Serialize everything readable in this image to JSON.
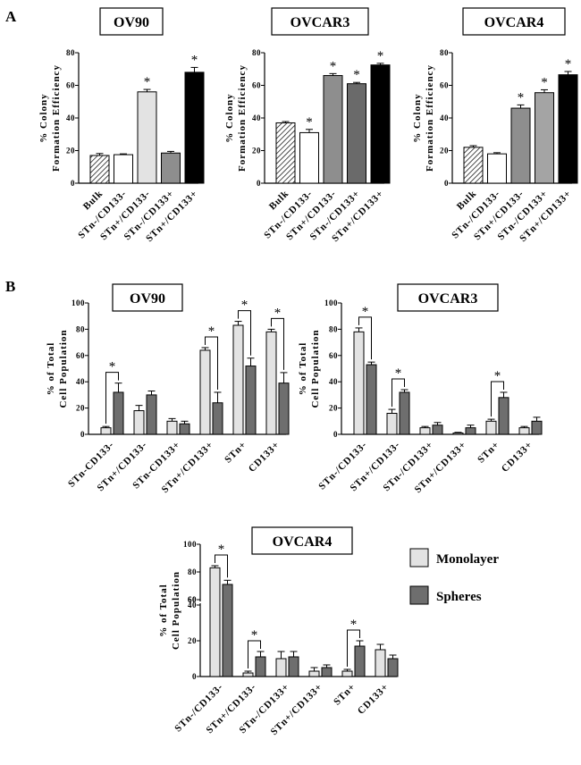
{
  "panels": {
    "a": "A",
    "b": "B"
  },
  "colors": {
    "bulk": "hatch",
    "white": "#ffffff",
    "lightgray": "#e3e3e3",
    "midgray": "#8e8e8e",
    "darkgray": "#6a6a6a",
    "lightmid": "#a4a4a4",
    "black": "#000000",
    "monolayer": "#e3e3e3",
    "spheres": "#6e6e6e"
  },
  "legend": {
    "monolayer": "Monolayer",
    "spheres": "Spheres"
  },
  "chart_data": [
    {
      "id": "a1",
      "type": "bar",
      "title": "OV90",
      "ylabel": [
        "% Colony",
        "Formation Efficiency"
      ],
      "ylim": [
        0,
        80
      ],
      "yticks": [
        0,
        20,
        40,
        60,
        80
      ],
      "categories": [
        "Bulk",
        "STn-/CD133-",
        "STn+/CD133-",
        "STn-/CD133+",
        "STn+/CD133+"
      ],
      "values": [
        17,
        17.5,
        56,
        18.5,
        68
      ],
      "errors": [
        1.2,
        0.5,
        1.5,
        1,
        3
      ],
      "colors": [
        "hatch",
        "#ffffff",
        "#e3e3e3",
        "#8e8e8e",
        "#000000"
      ],
      "significant": [
        false,
        false,
        true,
        false,
        true
      ],
      "star": "*"
    },
    {
      "id": "a2",
      "type": "bar",
      "title": "OVCAR3",
      "ylabel": [
        "% Colony",
        "Formation Efficiency"
      ],
      "ylim": [
        0,
        80
      ],
      "yticks": [
        0,
        20,
        40,
        60,
        80
      ],
      "categories": [
        "Bulk",
        "STn-/CD133-",
        "STn+/CD133-",
        "STn-/CD133+",
        "STn+/CD133+"
      ],
      "values": [
        37,
        31,
        66,
        61,
        72.5
      ],
      "errors": [
        0.8,
        2,
        1.2,
        0.8,
        1
      ],
      "colors": [
        "hatch",
        "#ffffff",
        "#8e8e8e",
        "#6a6a6a",
        "#000000"
      ],
      "significant": [
        false,
        true,
        true,
        true,
        true
      ],
      "star": "*"
    },
    {
      "id": "a3",
      "type": "bar",
      "title": "OVCAR4",
      "ylabel": [
        "% Colony",
        "Formation Efficiency"
      ],
      "ylim": [
        0,
        80
      ],
      "yticks": [
        0,
        20,
        40,
        60,
        80
      ],
      "categories": [
        "Bulk",
        "STn-/CD133-",
        "STn+/CD133-",
        "STn-/CD133+",
        "STn+/CD133+"
      ],
      "values": [
        22,
        18,
        46,
        55.5,
        66.5
      ],
      "errors": [
        1,
        0.7,
        2,
        1.8,
        2
      ],
      "colors": [
        "hatch",
        "#ffffff",
        "#8e8e8e",
        "#a4a4a4",
        "#000000"
      ],
      "significant": [
        false,
        false,
        true,
        true,
        true
      ],
      "star": "*"
    },
    {
      "id": "b1",
      "type": "bar",
      "title": "OV90",
      "ylabel": [
        "% of Total",
        "Cell Population"
      ],
      "ylim": [
        0,
        100
      ],
      "yticks": [
        0,
        20,
        40,
        60,
        80,
        100
      ],
      "categories": [
        "STn-CD133-",
        "STn+/CD133-",
        "STn-CD133+",
        "STn+/CD133+",
        "STn+",
        "CD133+"
      ],
      "series": [
        {
          "name": "Monolayer",
          "values": [
            5,
            18,
            10,
            64,
            83,
            78
          ],
          "errors": [
            1,
            4,
            2,
            2,
            3,
            2
          ]
        },
        {
          "name": "Spheres",
          "values": [
            32,
            30,
            8,
            24,
            52,
            39
          ],
          "errors": [
            7,
            3,
            2,
            8,
            6,
            8
          ]
        }
      ],
      "significant": [
        true,
        false,
        false,
        true,
        true,
        true
      ],
      "star": "*"
    },
    {
      "id": "b2",
      "type": "bar",
      "title": "OVCAR3",
      "ylabel": [
        "% of Total",
        "Cell Population"
      ],
      "ylim": [
        0,
        100
      ],
      "yticks": [
        0,
        20,
        40,
        60,
        80,
        100
      ],
      "categories": [
        "STn-/CD133-",
        "STn+/CD133-",
        "STn-/CD133+",
        "STn+/CD133+",
        "STn+",
        "CD133+"
      ],
      "series": [
        {
          "name": "Monolayer",
          "values": [
            78,
            16,
            5,
            1,
            10,
            5
          ],
          "errors": [
            3,
            3,
            1,
            0.5,
            1.5,
            1
          ]
        },
        {
          "name": "Spheres",
          "values": [
            53,
            32,
            7,
            5,
            28,
            10
          ],
          "errors": [
            2,
            2,
            2,
            2,
            4,
            3
          ]
        }
      ],
      "significant": [
        true,
        true,
        false,
        false,
        true,
        false
      ],
      "star": "*"
    },
    {
      "id": "b3",
      "type": "bar",
      "title": "OVCAR4",
      "ylabel": [
        "% of Total",
        "Cell Population"
      ],
      "ylim": [
        0,
        100
      ],
      "yticks": [
        0,
        20,
        40,
        60,
        80,
        100
      ],
      "axis_break": [
        40,
        60
      ],
      "categories": [
        "STn-/CD133-",
        "STn+/CD133-",
        "STn-/CD133+",
        "STn+/CD133+",
        "STn+",
        "CD133+"
      ],
      "series": [
        {
          "name": "Monolayer",
          "values": [
            83,
            2,
            10,
            3,
            3,
            15
          ],
          "errors": [
            1.5,
            1,
            4,
            2,
            1,
            3
          ]
        },
        {
          "name": "Spheres",
          "values": [
            71,
            11,
            11,
            5,
            17,
            10
          ],
          "errors": [
            3,
            3,
            3,
            1.5,
            3,
            2
          ]
        }
      ],
      "significant": [
        true,
        true,
        false,
        false,
        true,
        false
      ],
      "star": "*"
    }
  ]
}
